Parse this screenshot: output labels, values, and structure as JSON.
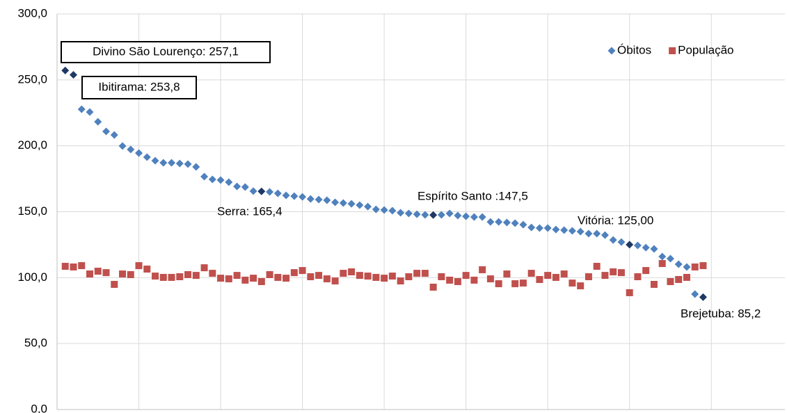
{
  "chart_data": {
    "type": "scatter",
    "x": [
      1,
      2,
      3,
      4,
      5,
      6,
      7,
      8,
      9,
      10,
      11,
      12,
      13,
      14,
      15,
      16,
      17,
      18,
      19,
      20,
      21,
      22,
      23,
      24,
      25,
      26,
      27,
      28,
      29,
      30,
      31,
      32,
      33,
      34,
      35,
      36,
      37,
      38,
      39,
      40,
      41,
      42,
      43,
      44,
      45,
      46,
      47,
      48,
      49,
      50,
      51,
      52,
      53,
      54,
      55,
      56,
      57,
      58,
      59,
      60,
      61,
      62,
      63,
      64,
      65,
      66,
      67,
      68,
      69,
      70,
      71,
      72,
      73,
      74,
      75,
      76,
      77,
      78,
      79
    ],
    "series": [
      {
        "name": "Óbitos",
        "color": "#4f81bd",
        "marker": "diamond",
        "highlight_color": "#1f3864",
        "values": [
          257.1,
          253.8,
          227.7,
          225.6,
          218.2,
          210.9,
          208.2,
          199.8,
          197.2,
          194.5,
          191.4,
          188.7,
          187.1,
          187.1,
          186.6,
          186.1,
          184.0,
          176.6,
          174.5,
          174.0,
          172.4,
          169.2,
          168.7,
          165.6,
          165.4,
          165.0,
          163.9,
          162.4,
          161.8,
          161.3,
          159.7,
          159.2,
          158.7,
          157.1,
          156.6,
          156.0,
          155.0,
          153.9,
          151.8,
          151.3,
          150.8,
          149.2,
          148.7,
          148.1,
          147.6,
          147.5,
          147.6,
          148.7,
          147.1,
          146.5,
          146.0,
          146.0,
          142.3,
          142.3,
          141.8,
          141.3,
          140.2,
          138.1,
          137.6,
          137.6,
          136.5,
          136.0,
          135.5,
          134.9,
          133.4,
          133.4,
          132.3,
          128.6,
          127.0,
          125.0,
          124.4,
          122.8,
          121.8,
          116.0,
          114.4,
          110.2,
          108.1,
          87.5,
          85.2
        ],
        "value_labels": [
          "Divino São Lourenço: 257,1",
          "Ibitirama: 253,8",
          null,
          null,
          null,
          null,
          null,
          null,
          null,
          null,
          null,
          null,
          null,
          null,
          null,
          null,
          null,
          null,
          null,
          null,
          null,
          null,
          null,
          null,
          "Serra: 165,4",
          null,
          null,
          null,
          null,
          null,
          null,
          null,
          null,
          null,
          null,
          null,
          null,
          null,
          null,
          null,
          null,
          null,
          null,
          null,
          null,
          "Espírito Santo :147,5",
          null,
          null,
          null,
          null,
          null,
          null,
          null,
          null,
          null,
          null,
          null,
          null,
          null,
          null,
          null,
          null,
          null,
          null,
          null,
          null,
          null,
          null,
          null,
          "Vitória: 125,00",
          null,
          null,
          null,
          null,
          null,
          null,
          null,
          null,
          "Brejetuba: 85,2"
        ]
      },
      {
        "name": "População",
        "color": "#c0504d",
        "marker": "square",
        "values": [
          108.6,
          108.1,
          109.1,
          102.8,
          104.9,
          103.8,
          94.9,
          102.8,
          102.3,
          109.1,
          106.5,
          101.2,
          100.2,
          100.2,
          100.7,
          102.3,
          101.7,
          107.5,
          103.3,
          99.6,
          99.1,
          101.7,
          98.1,
          99.6,
          97.0,
          102.3,
          100.2,
          99.6,
          103.8,
          105.4,
          100.7,
          101.7,
          99.1,
          97.5,
          103.3,
          104.4,
          101.7,
          101.2,
          100.2,
          99.6,
          101.2,
          97.5,
          100.7,
          103.3,
          103.3,
          92.8,
          100.7,
          98.1,
          97.0,
          101.7,
          98.1,
          106.0,
          99.1,
          95.4,
          102.8,
          95.4,
          95.9,
          103.3,
          98.6,
          101.7,
          100.2,
          102.8,
          95.9,
          93.8,
          100.7,
          108.6,
          101.7,
          104.4,
          103.8,
          88.6,
          100.7,
          105.4,
          94.9,
          110.7,
          97.0,
          98.6,
          100.2,
          108.1,
          109.1
        ]
      }
    ],
    "xlim": [
      0,
      89
    ],
    "xticks": [
      10,
      20,
      30,
      40,
      50,
      60,
      70,
      80
    ],
    "ylim": [
      0,
      300
    ],
    "yticks": [
      {
        "value": 0,
        "label": "0,0"
      },
      {
        "value": 50,
        "label": "50,0"
      },
      {
        "value": 100,
        "label": "100,0"
      },
      {
        "value": 150,
        "label": "150,0"
      },
      {
        "value": 200,
        "label": "200,0"
      },
      {
        "value": 250,
        "label": "250,0"
      },
      {
        "value": 300,
        "label": "300,0"
      }
    ],
    "grid": true,
    "legend": "top-right"
  }
}
